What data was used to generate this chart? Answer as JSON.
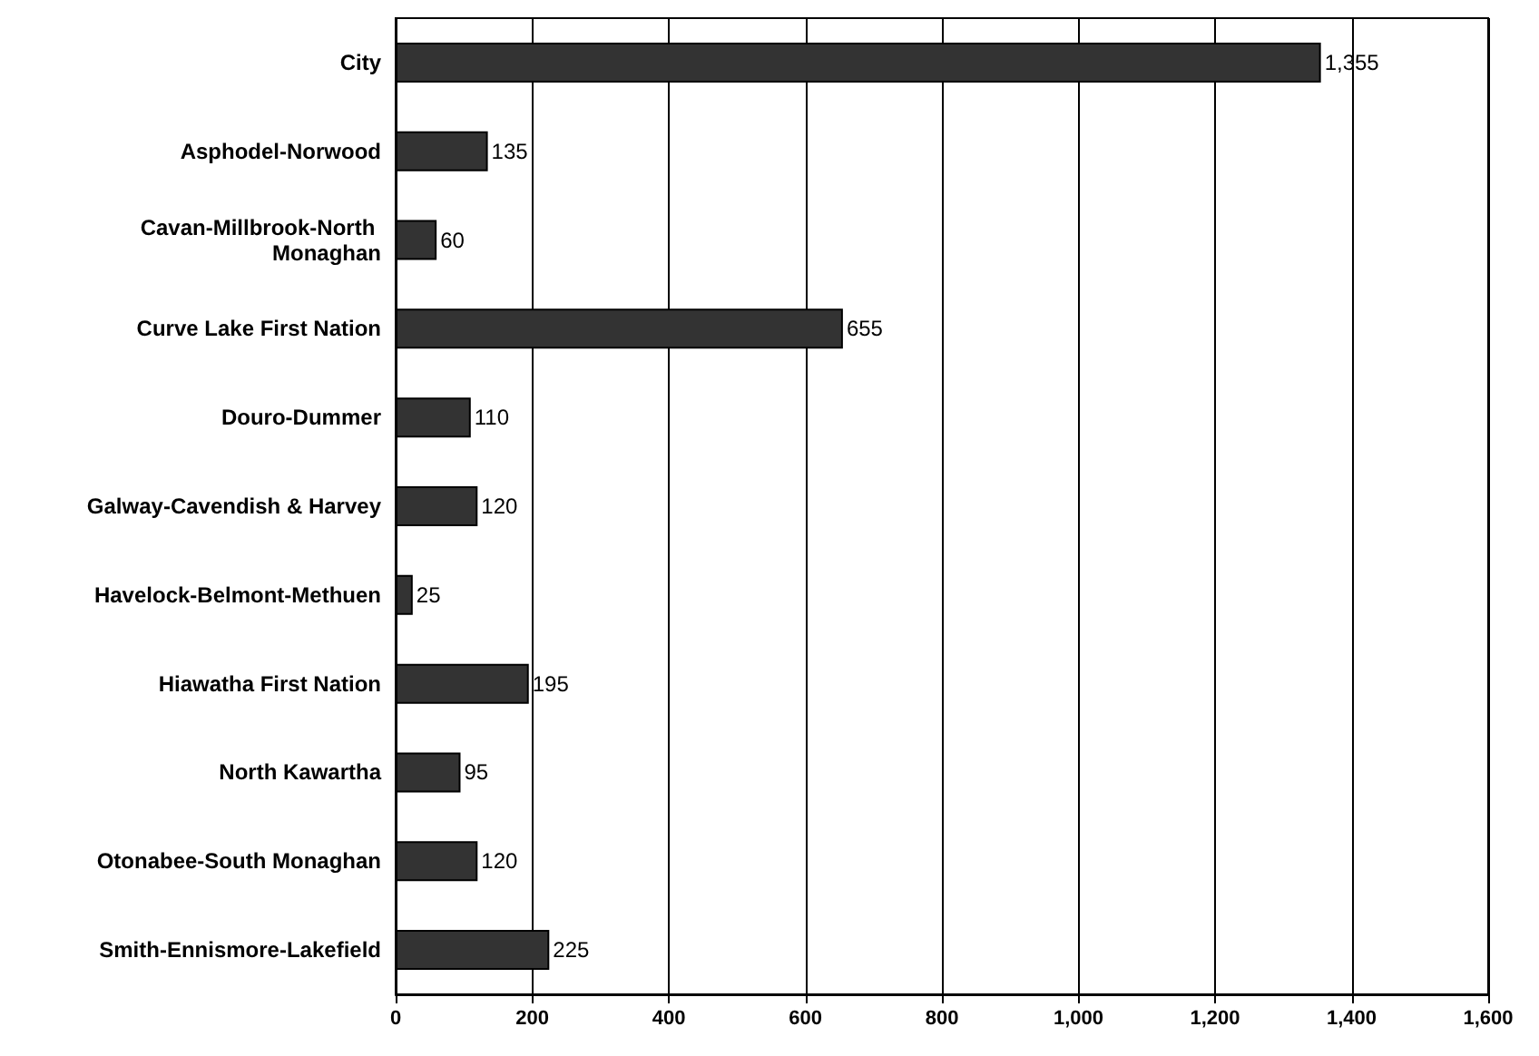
{
  "chart_data": {
    "type": "bar",
    "orientation": "horizontal",
    "categories": [
      "City",
      "Asphodel-Norwood",
      "Cavan-Millbrook-North Monaghan",
      "Curve Lake First Nation",
      "Douro-Dummer",
      "Galway-Cavendish & Harvey",
      "Havelock-Belmont-Methuen",
      "Hiawatha First Nation",
      "North Kawartha",
      "Otonabee-South Monaghan",
      "Smith-Ennismore-Lakefield"
    ],
    "values": [
      1355,
      135,
      60,
      655,
      110,
      120,
      25,
      195,
      95,
      120,
      225
    ],
    "value_labels": [
      "1,355",
      "135",
      "60",
      "655",
      "110",
      "120",
      "25",
      "195",
      "95",
      "120",
      "225"
    ],
    "color": "#333333",
    "xlim": [
      0,
      1600
    ],
    "xticks": [
      0,
      200,
      400,
      600,
      800,
      {
        "value": 1000,
        "label": "1,000"
      },
      {
        "value": 1200,
        "label": "1,200"
      },
      {
        "value": 1400,
        "label": "1,400"
      },
      {
        "value": 1600,
        "label": "1,600"
      }
    ],
    "grid": "x"
  }
}
